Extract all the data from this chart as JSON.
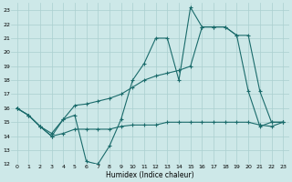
{
  "xlabel": "Humidex (Indice chaleur)",
  "ylabel": "",
  "xlim": [
    -0.5,
    23.5
  ],
  "ylim": [
    12,
    23.5
  ],
  "yticks": [
    12,
    13,
    14,
    15,
    16,
    17,
    18,
    19,
    20,
    21,
    22,
    23
  ],
  "xticks": [
    0,
    1,
    2,
    3,
    4,
    5,
    6,
    7,
    8,
    9,
    10,
    11,
    12,
    13,
    14,
    15,
    16,
    17,
    18,
    19,
    20,
    21,
    22,
    23
  ],
  "bg_color": "#cde8e8",
  "grid_color": "#aacfcf",
  "line_color": "#1a6b6b",
  "series1_x": [
    0,
    1,
    2,
    3,
    4,
    5,
    6,
    7,
    8,
    9,
    10,
    11,
    12,
    13,
    14,
    15,
    16,
    17,
    18,
    19,
    20,
    21,
    22,
    23
  ],
  "series1_y": [
    16.0,
    15.5,
    14.7,
    14.0,
    15.2,
    15.5,
    12.2,
    12.0,
    13.3,
    15.2,
    18.0,
    19.2,
    21.0,
    21.0,
    18.0,
    23.2,
    21.8,
    21.8,
    21.8,
    21.2,
    17.2,
    14.7,
    15.0,
    15.0
  ],
  "series2_x": [
    0,
    1,
    2,
    3,
    4,
    5,
    6,
    7,
    8,
    9,
    10,
    11,
    12,
    13,
    14,
    15,
    16,
    17,
    18,
    19,
    20,
    21,
    22,
    23
  ],
  "series2_y": [
    16.0,
    15.5,
    14.7,
    14.2,
    15.2,
    16.2,
    16.3,
    16.5,
    16.7,
    17.0,
    17.5,
    18.0,
    18.3,
    18.5,
    18.7,
    19.0,
    21.8,
    21.8,
    21.8,
    21.2,
    21.2,
    17.2,
    15.0,
    15.0
  ],
  "series3_x": [
    0,
    1,
    2,
    3,
    4,
    5,
    6,
    7,
    8,
    9,
    10,
    11,
    12,
    13,
    14,
    15,
    16,
    17,
    18,
    19,
    20,
    21,
    22,
    23
  ],
  "series3_y": [
    16.0,
    15.5,
    14.7,
    14.0,
    14.2,
    14.5,
    14.5,
    14.5,
    14.5,
    14.7,
    14.8,
    14.8,
    14.8,
    15.0,
    15.0,
    15.0,
    15.0,
    15.0,
    15.0,
    15.0,
    15.0,
    14.8,
    14.7,
    15.0
  ]
}
